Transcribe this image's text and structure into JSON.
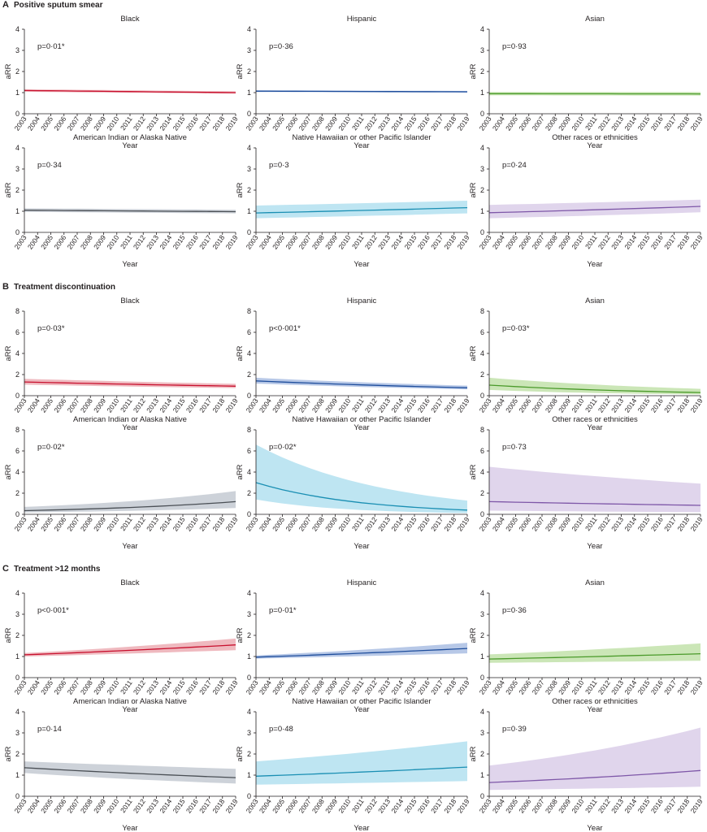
{
  "chart_data": [
    {
      "section": "A",
      "section_title": "Positive sputum smear",
      "type": "line",
      "ylabel": "aRR",
      "xlabel": "Year",
      "ylim": [
        0,
        4
      ],
      "yticks": [
        0,
        1,
        2,
        3,
        4
      ],
      "x": [
        "2003",
        "2004",
        "2005",
        "2006",
        "2007",
        "2008",
        "2009",
        "2010",
        "2011",
        "2012",
        "2013",
        "2014",
        "2015",
        "2016",
        "2017",
        "2018",
        "2019"
      ],
      "panels": [
        {
          "title": "Black",
          "p": "p=0·01*",
          "color": "#c8102e",
          "band": "#e9a1aa",
          "fit": [
            1.1,
            1.0
          ],
          "lower": [
            1.04,
            0.95
          ],
          "upper": [
            1.16,
            1.06
          ]
        },
        {
          "title": "Hispanic",
          "p": "p=0·36",
          "color": "#1f4e9c",
          "band": "#9fb6df",
          "fit": [
            1.07,
            1.04
          ],
          "lower": [
            1.03,
            1.0
          ],
          "upper": [
            1.11,
            1.08
          ]
        },
        {
          "title": "Asian",
          "p": "p=0·93",
          "color": "#4a9a2a",
          "band": "#b9dd9f",
          "fit": [
            0.95,
            0.94
          ],
          "lower": [
            0.87,
            0.86
          ],
          "upper": [
            1.03,
            1.03
          ]
        },
        {
          "title": "American Indian or Alaska Native",
          "p": "p=0·34",
          "color": "#4a4f55",
          "band": "#bcc3cc",
          "fit": [
            1.05,
            0.98
          ],
          "lower": [
            0.97,
            0.9
          ],
          "upper": [
            1.14,
            1.07
          ]
        },
        {
          "title": "Native Hawaiian or other Pacific Islander",
          "p": "p=0·3",
          "color": "#1a8fb3",
          "band": "#a8dced",
          "fit": [
            0.92,
            1.17
          ],
          "lower": [
            0.67,
            0.9
          ],
          "upper": [
            1.27,
            1.5
          ]
        },
        {
          "title": "Other races or ethnicities",
          "p": "p=0·24",
          "color": "#7e57a8",
          "band": "#d5c7e6",
          "fit": [
            0.93,
            1.23
          ],
          "lower": [
            0.67,
            0.95
          ],
          "upper": [
            1.3,
            1.55
          ]
        }
      ]
    },
    {
      "section": "B",
      "section_title": "Treatment discontinuation",
      "type": "line",
      "ylabel": "aRR",
      "xlabel": "Year",
      "ylim": [
        0,
        8
      ],
      "yticks": [
        0,
        2,
        4,
        6,
        8
      ],
      "x": [
        "2003",
        "2004",
        "2005",
        "2006",
        "2007",
        "2008",
        "2009",
        "2010",
        "2011",
        "2012",
        "2013",
        "2014",
        "2015",
        "2016",
        "2017",
        "2018",
        "2019"
      ],
      "panels": [
        {
          "title": "Black",
          "p": "p=0·03*",
          "color": "#c8102e",
          "band": "#e9a1aa",
          "fit": [
            1.3,
            0.9
          ],
          "lower": [
            1.05,
            0.72
          ],
          "upper": [
            1.6,
            1.12
          ]
        },
        {
          "title": "Hispanic",
          "p": "p<0·001*",
          "color": "#1f4e9c",
          "band": "#9fb6df",
          "fit": [
            1.4,
            0.75
          ],
          "lower": [
            1.15,
            0.6
          ],
          "upper": [
            1.7,
            0.95
          ]
        },
        {
          "title": "Asian",
          "p": "p=0·03*",
          "color": "#4a9a2a",
          "band": "#b9dd9f",
          "fit": [
            1.0,
            0.3
          ],
          "lower": [
            0.55,
            0.12
          ],
          "upper": [
            1.7,
            0.65
          ]
        },
        {
          "title": "American Indian or Alaska Native",
          "p": "p=0·02*",
          "color": "#4a4f55",
          "band": "#bcc3cc",
          "fit": [
            0.35,
            1.2
          ],
          "lower": [
            0.18,
            0.6
          ],
          "upper": [
            0.7,
            2.2
          ]
        },
        {
          "title": "Native Hawaiian or other Pacific Islander",
          "p": "p=0·02*",
          "color": "#1a8fb3",
          "band": "#a8dced",
          "fit": [
            3.0,
            0.4
          ],
          "lower": [
            1.4,
            0.12
          ],
          "upper": [
            6.6,
            1.3
          ]
        },
        {
          "title": "Other races or ethnicities",
          "p": "p=0·73",
          "color": "#7e57a8",
          "band": "#d5c7e6",
          "fit": [
            1.2,
            0.85
          ],
          "lower": [
            0.35,
            0.2
          ],
          "upper": [
            4.5,
            2.9
          ]
        }
      ]
    },
    {
      "section": "C",
      "section_title": "Treatment >12 months",
      "type": "line",
      "ylabel": "aRR",
      "xlabel": "Year",
      "ylim": [
        0,
        4
      ],
      "yticks": [
        0,
        1,
        2,
        3,
        4
      ],
      "x": [
        "2003",
        "2004",
        "2005",
        "2006",
        "2007",
        "2008",
        "2009",
        "2010",
        "2011",
        "2012",
        "2013",
        "2014",
        "2015",
        "2016",
        "2017",
        "2018",
        "2019"
      ],
      "panels": [
        {
          "title": "Black",
          "p": "p<0·001*",
          "color": "#c8102e",
          "band": "#e9a1aa",
          "fit": [
            1.08,
            1.55
          ],
          "lower": [
            1.0,
            1.3
          ],
          "upper": [
            1.16,
            1.85
          ]
        },
        {
          "title": "Hispanic",
          "p": "p=0·01*",
          "color": "#1f4e9c",
          "band": "#9fb6df",
          "fit": [
            0.97,
            1.38
          ],
          "lower": [
            0.9,
            1.15
          ],
          "upper": [
            1.05,
            1.65
          ]
        },
        {
          "title": "Asian",
          "p": "p=0·36",
          "color": "#4a9a2a",
          "band": "#b9dd9f",
          "fit": [
            0.88,
            1.13
          ],
          "lower": [
            0.7,
            0.8
          ],
          "upper": [
            1.1,
            1.62
          ]
        },
        {
          "title": "American Indian or Alaska Native",
          "p": "p=0·14",
          "color": "#4a4f55",
          "band": "#bcc3cc",
          "fit": [
            1.35,
            0.88
          ],
          "lower": [
            1.1,
            0.6
          ],
          "upper": [
            1.65,
            1.3
          ]
        },
        {
          "title": "Native Hawaiian or other Pacific Islander",
          "p": "p=0·48",
          "color": "#1a8fb3",
          "band": "#a8dced",
          "fit": [
            0.95,
            1.38
          ],
          "lower": [
            0.55,
            0.72
          ],
          "upper": [
            1.65,
            2.6
          ]
        },
        {
          "title": "Other races or ethnicities",
          "p": "p=0·39",
          "color": "#7e57a8",
          "band": "#d5c7e6",
          "fit": [
            0.65,
            1.22
          ],
          "lower": [
            0.3,
            0.45
          ],
          "upper": [
            1.45,
            3.25
          ]
        }
      ]
    }
  ]
}
